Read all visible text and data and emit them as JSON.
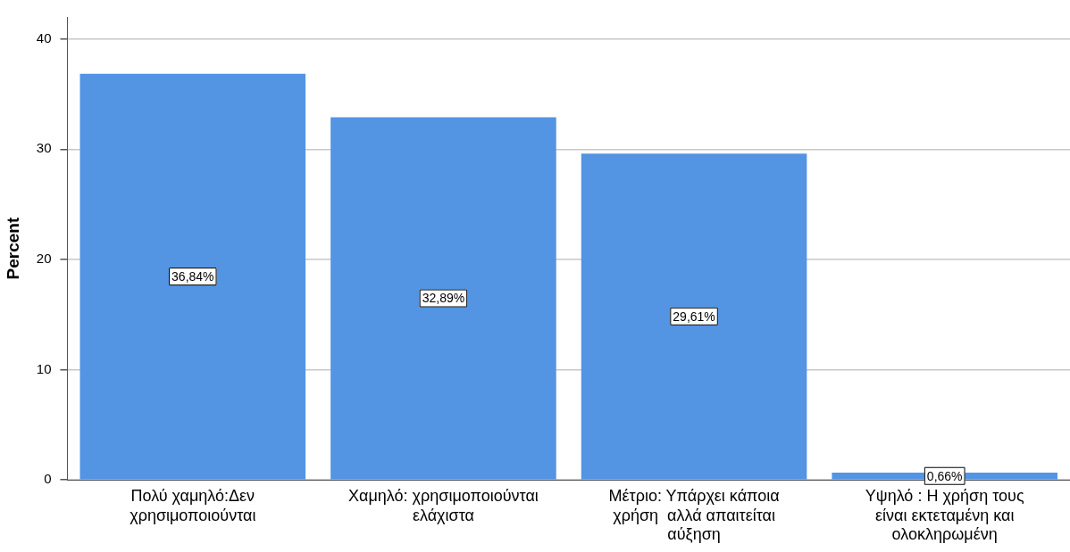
{
  "chart_data": {
    "type": "bar",
    "ylabel": "Percent",
    "categories": [
      "Πολύ χαμηλό:Δεν χρησιμοποιούνται",
      "Χαμηλό: χρησιμοποιούνται ελάχιστα",
      "Μέτριο: Υπάρχει κάποια χρήση  αλλά απαιτείται αύξηση",
      "Υψηλό : Η χρήση τους είναι εκτεταμένη και ολοκληρωμένη"
    ],
    "values": [
      36.84,
      32.89,
      29.61,
      0.66
    ],
    "value_labels": [
      "36,84%",
      "32,89%",
      "29,61%",
      "0,66%"
    ],
    "color": "#5394e3",
    "ylim": [
      0,
      42
    ],
    "yticks": [
      0,
      10,
      20,
      30,
      40
    ],
    "grid": "y",
    "legend": false
  }
}
